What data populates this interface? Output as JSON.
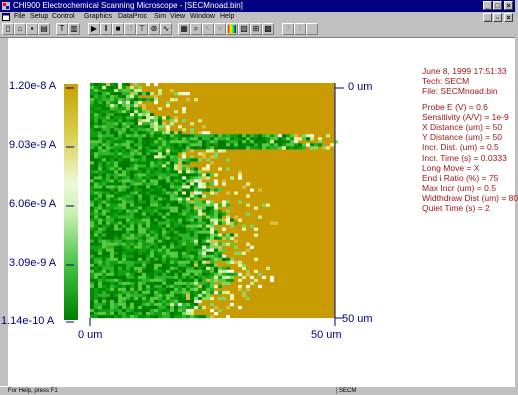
{
  "window": {
    "title": "CHI900 Electrochemical Scanning Microscope - [SECMnoad.bin]"
  },
  "menu": [
    "File",
    "Setup",
    "Control",
    "Graphics",
    "DataProc",
    "Sim",
    "View",
    "Window",
    "Help"
  ],
  "toolbar": {
    "buttons": [
      "new-icon",
      "open-icon",
      "save-icon",
      "print-icon",
      "technique-icon",
      "parameters-icon",
      "run-icon",
      "pause-icon",
      "stop-icon",
      "reverse-icon",
      "probe-icon",
      "ir-comp-icon",
      "filter-icon",
      "graph-icon",
      "zoom-icon",
      "cursor-icon",
      "manual-result-icon",
      "color-icon",
      "grid-icon",
      "cell-icon",
      "macro-icon",
      "help-icon",
      "about-icon"
    ]
  },
  "colorbar": {
    "labels": [
      "1.20e-8 A",
      "9.03e-9 A",
      "6.06e-9 A",
      "3.09e-9 A",
      "1.14e-10 A"
    ],
    "colors": [
      "#c8a000",
      "#d0dc40",
      "#f0fae8",
      "#40c040",
      "#008000"
    ]
  },
  "plot": {
    "y_top_label": "0 um",
    "y_bottom_label": "50 um",
    "x_left_label": "0 um",
    "x_right_label": "50 um",
    "background_color": "#c89c00",
    "low_color": "#007a00"
  },
  "info": {
    "date": "June 8, 1999   17:51:33",
    "tech": "Tech: SECM",
    "file": "File: SECMnoad.bin",
    "params": [
      "Probe E (V) = 0.6",
      "Sensitivity (A/V) = 1e-9",
      "X Distance (um) = 50",
      "Y Distance (um) = 50",
      "Incr. Dist. (um) = 0.5",
      "Incr. Time (s) = 0.0333",
      "Long Move = X",
      "End i Ratio (%) = 75",
      "Max Incr (um) = 0.5",
      "Widthdraw Dist (um) = 80",
      "Quiet Time (s) = 2"
    ]
  },
  "status": {
    "help": "For Help, press F1",
    "technique": "SECM"
  }
}
